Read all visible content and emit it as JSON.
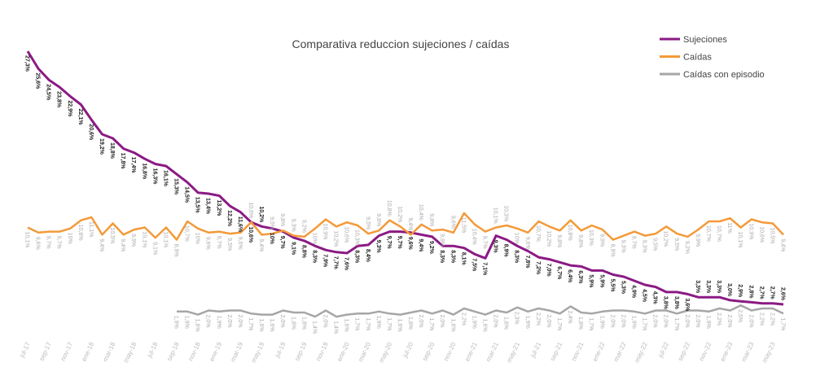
{
  "chart_data": {
    "type": "line",
    "title": "Comparativa reduccion sujeciones / caídas",
    "legend_position": "top-right",
    "grid": false,
    "x": [
      "jul-17",
      "ago-17",
      "sep-17",
      "oct-17",
      "nov-17",
      "dic-17",
      "ene-18",
      "feb-18",
      "mar-18",
      "abr-18",
      "may-18",
      "jun-18",
      "jul-18",
      "ago-18",
      "sep-18",
      "oct-18",
      "nov-18",
      "dic-18",
      "ene-19",
      "feb-19",
      "mar-19",
      "abr-19",
      "may-19",
      "jun-19",
      "jul-19",
      "ago-19",
      "sep-19",
      "oct-19",
      "nov-19",
      "dic-19",
      "ene-20",
      "feb-20",
      "mar-20",
      "abr-20",
      "may-20",
      "jun-20",
      "jul-20",
      "ago-20",
      "sep-20",
      "oct-20",
      "nov-20",
      "dic-20",
      "ene-21",
      "feb-21",
      "mar-21",
      "abr-21",
      "may-21",
      "jun-21",
      "jul-21",
      "ago-21",
      "sep-21",
      "oct-21",
      "nov-21",
      "dic-21",
      "ene-22",
      "feb-22",
      "mar-22",
      "abr-22",
      "may-22",
      "jun-22",
      "jul-22",
      "ago-22",
      "sep-22",
      "oct-22",
      "nov-22",
      "dic-22",
      "ene-23",
      "feb-23",
      "mar-23",
      "abr-23",
      "may-23",
      "jun-23"
    ],
    "x_tick_labels": [
      "jul-17",
      "sep-17",
      "nov-17",
      "ene-18",
      "mar-18",
      "may-18",
      "jul-18",
      "sep-18",
      "nov-18",
      "ene-19",
      "mar-19",
      "may-19",
      "jul-19",
      "sep-19",
      "nov-19",
      "ene-20",
      "mar-20",
      "may-20",
      "jul-20",
      "sep-20",
      "nov-20",
      "ene-21",
      "mar-21",
      "may-21",
      "jul-21",
      "sep-21",
      "nov-21",
      "ene-22",
      "mar-22",
      "may-22",
      "jul-22",
      "sep-22",
      "nov-22",
      "ene-23",
      "mar-23",
      "may-23"
    ],
    "unit": "%",
    "series": [
      {
        "name": "Sujeciones",
        "color": "#8b1a84",
        "values": [
          27.3,
          25.6,
          24.5,
          23.8,
          22.9,
          22.1,
          20.6,
          19.2,
          18.8,
          17.8,
          17.4,
          16.8,
          16.3,
          16.1,
          15.3,
          14.5,
          13.5,
          13.4,
          13.2,
          12.2,
          11.6,
          10.6,
          10.2,
          10.0,
          9.7,
          9.1,
          8.8,
          8.3,
          7.9,
          7.7,
          7.6,
          8.3,
          8.4,
          9.3,
          9.7,
          9.7,
          9.6,
          9.4,
          9.2,
          8.3,
          8.3,
          8.1,
          7.5,
          7.1,
          9.3,
          8.9,
          8.3,
          7.8,
          7.2,
          7.0,
          6.7,
          6.4,
          6.3,
          5.9,
          5.9,
          5.5,
          5.3,
          4.9,
          4.5,
          4.3,
          3.8,
          3.8,
          3.6,
          3.3,
          3.3,
          3.3,
          3.0,
          2.9,
          2.8,
          2.7,
          2.7,
          2.6
        ]
      },
      {
        "name": "Caídas",
        "color": "#f39a3a",
        "values": [
          10.1,
          9.6,
          9.7,
          9.7,
          10.0,
          10.8,
          11.1,
          9.4,
          10.5,
          9.4,
          9.9,
          10.1,
          9.1,
          10.1,
          8.9,
          10.7,
          10.0,
          9.6,
          9.7,
          9.5,
          9.6,
          10.6,
          9.4,
          9.5,
          9.8,
          9.3,
          9.2,
          10.0,
          10.9,
          10.2,
          10.6,
          10.3,
          9.5,
          9.8,
          10.8,
          10.2,
          9.4,
          10.4,
          9.8,
          9.9,
          9.6,
          11.5,
          10.4,
          9.7,
          10.1,
          10.3,
          10.0,
          9.6,
          10.7,
          10.2,
          9.8,
          10.8,
          9.8,
          10.3,
          9.9,
          8.9,
          9.3,
          9.7,
          9.3,
          9.5,
          10.2,
          9.5,
          9.2,
          9.9,
          10.7,
          10.7,
          11.0,
          10.1,
          10.9,
          10.6,
          10.5,
          9.4
        ]
      },
      {
        "name": "Caídas con episodio",
        "color": "#a6a6a6",
        "values": [
          null,
          null,
          null,
          null,
          null,
          null,
          null,
          null,
          null,
          null,
          null,
          null,
          null,
          null,
          1.9,
          1.9,
          1.6,
          2.0,
          1.9,
          2.0,
          2.0,
          1.7,
          1.6,
          1.6,
          2.0,
          1.8,
          1.8,
          1.4,
          2.0,
          1.4,
          1.6,
          1.7,
          1.7,
          1.9,
          1.7,
          1.6,
          1.8,
          2.0,
          1.7,
          2.0,
          1.6,
          2.2,
          1.9,
          1.6,
          2.0,
          1.8,
          2.3,
          1.9,
          2.2,
          2.0,
          1.7,
          2.4,
          1.8,
          1.7,
          1.9,
          2.0,
          2.0,
          1.9,
          1.7,
          2.0,
          2.0,
          1.7,
          2.0,
          2.0,
          1.9,
          2.2,
          2.0,
          2.5,
          2.0,
          2.2,
          2.2,
          1.7
        ]
      }
    ]
  }
}
